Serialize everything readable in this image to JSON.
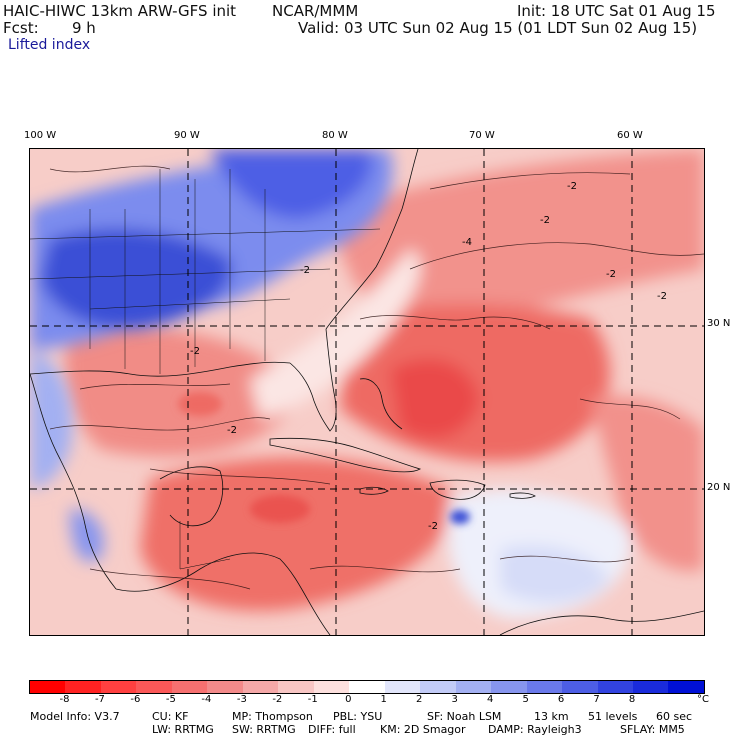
{
  "header": {
    "model_title": "HAIC-HIWC 13km ARW-GFS init",
    "center": "NCAR/MMM",
    "init": "Init: 18 UTC Sat 01 Aug 15",
    "fcst_label": "Fcst:",
    "fcst_value": "9 h",
    "valid": "Valid: 03 UTC Sun 02 Aug 15 (01 LDT Sun 02 Aug 15)",
    "field_name": "Lifted index"
  },
  "map": {
    "longitude_labels": [
      "100 W",
      "90 W",
      "80 W",
      "70 W",
      "60 W"
    ],
    "latitude_labels": [
      "30 N",
      "20 N"
    ],
    "contour_labels": [
      "-2",
      "-2",
      "-2",
      "-2",
      "-4",
      "-2",
      "-2",
      "-2",
      "-2"
    ],
    "colors": {
      "stable_deep": "#3a4fd6",
      "stable_mid": "#7b8cee",
      "stable_light": "#b9c3f6",
      "neutral": "#ffffff",
      "unstable_light": "#fbd2cd",
      "unstable_mid": "#f38d88",
      "unstable_strong": "#ee5a57",
      "unstable_deep": "#e93a3a"
    }
  },
  "colorbar": {
    "ticks": [
      "-8",
      "-7",
      "-6",
      "-5",
      "-4",
      "-3",
      "-2",
      "-1",
      "0",
      "1",
      "2",
      "3",
      "4",
      "5",
      "6",
      "7",
      "8"
    ],
    "unit": "°C",
    "colors": [
      "#ff0000",
      "#ff2222",
      "#ff4040",
      "#fb5858",
      "#f67070",
      "#f38a8a",
      "#f5a8a8",
      "#f8c6c4",
      "#fde0de",
      "#ffffff",
      "#e2e6fb",
      "#c2cbf7",
      "#a3b0f2",
      "#8795ee",
      "#6a79ea",
      "#4d5ee5",
      "#3243e0",
      "#1a2bdb",
      "#0010d6"
    ]
  },
  "footer": {
    "line1": {
      "model_info": "Model Info: V3.7",
      "cu": "CU: KF",
      "mp": "MP: Thompson",
      "pbl": "PBL: YSU",
      "sf": "SF: Noah LSM",
      "res": "13 km",
      "levels": "51 levels",
      "dt": "60 sec"
    },
    "line2": {
      "lw": "LW: RRTMG",
      "sw": "SW: RRTMG",
      "diff": "DIFF: full",
      "km": "KM: 2D Smagor",
      "damp": "DAMP: Rayleigh3",
      "sflay": "SFLAY: MM5"
    }
  }
}
